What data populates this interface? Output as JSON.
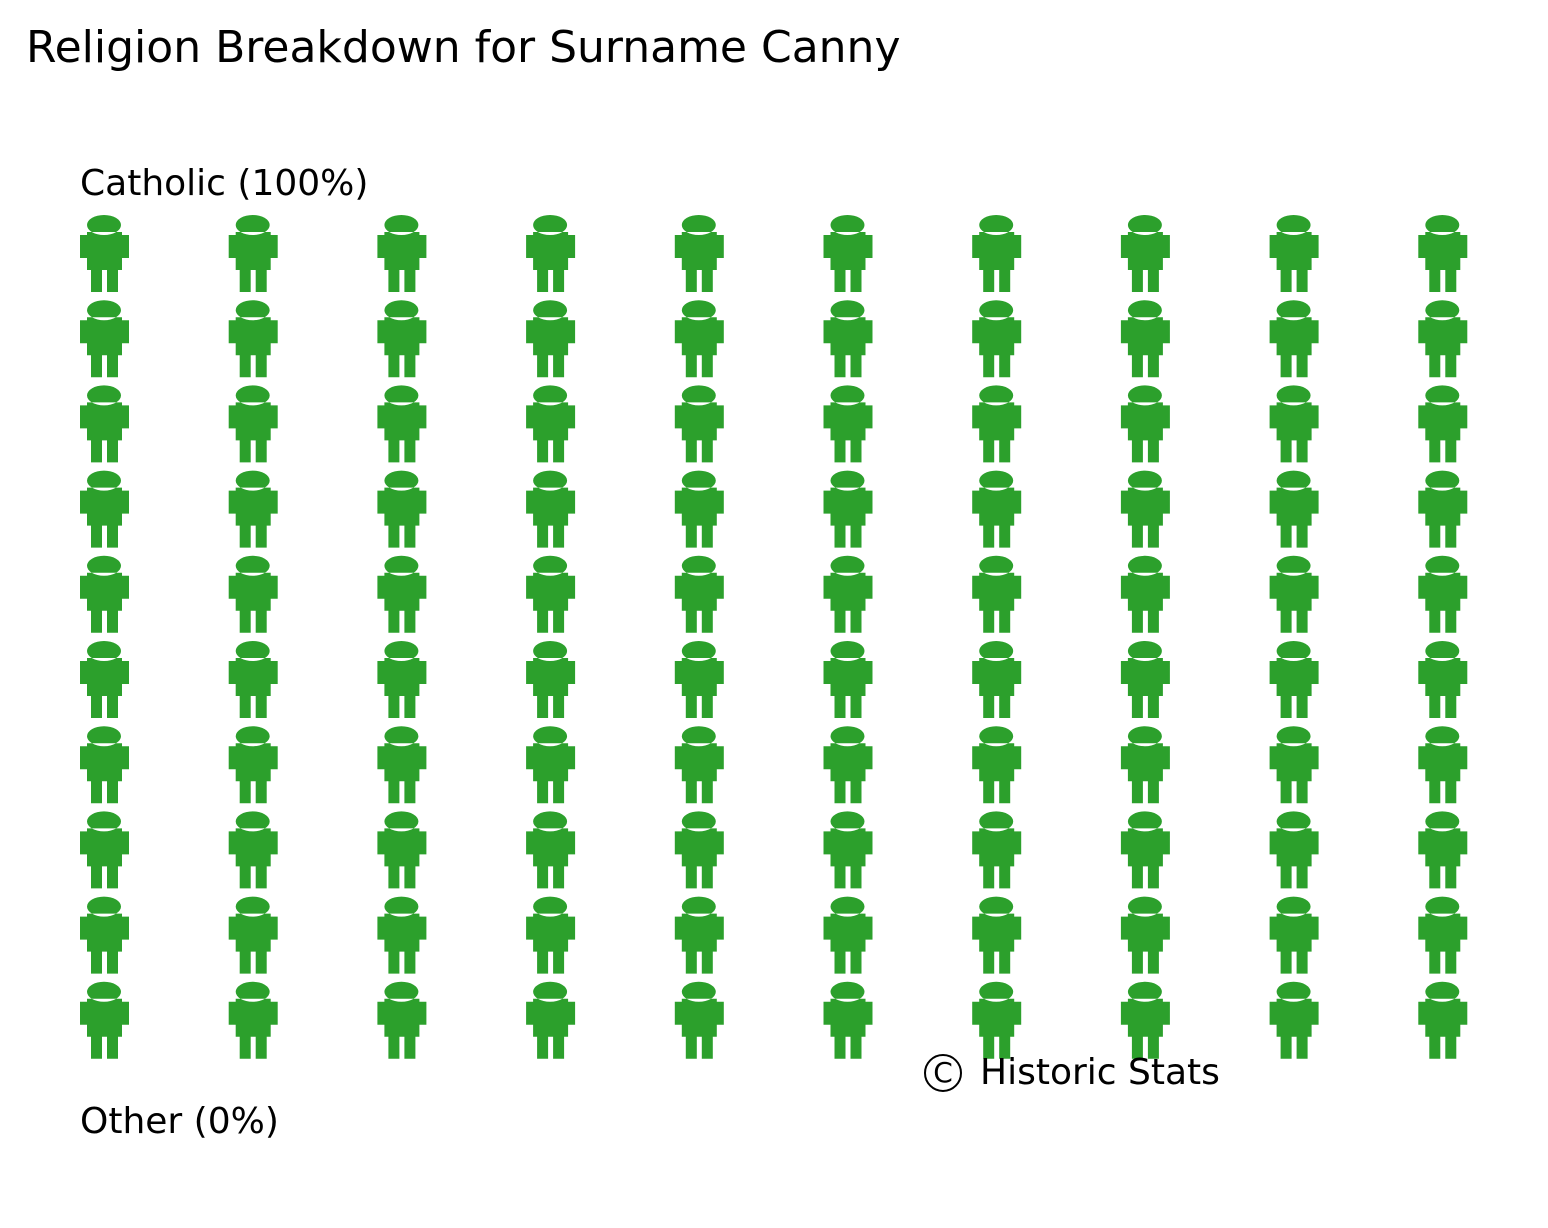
{
  "title": "Religion Breakdown for Surname Canny",
  "copyright": {
    "symbol": "C",
    "text": "Historic Stats"
  },
  "colors": {
    "catholic": "#2ca02c"
  },
  "icon": "person-icon",
  "chart_data": {
    "type": "waffle",
    "title": "Religion Breakdown for Surname Canny",
    "grid": {
      "rows": 10,
      "columns": 10
    },
    "categories": [
      "Catholic (100%)",
      "Other (0%)"
    ],
    "series": [
      {
        "label": "Catholic (100%)",
        "percent": 100,
        "icon_count": 100,
        "color": "#2ca02c"
      },
      {
        "label": "Other (0%)",
        "percent": 0,
        "icon_count": 0
      }
    ]
  }
}
